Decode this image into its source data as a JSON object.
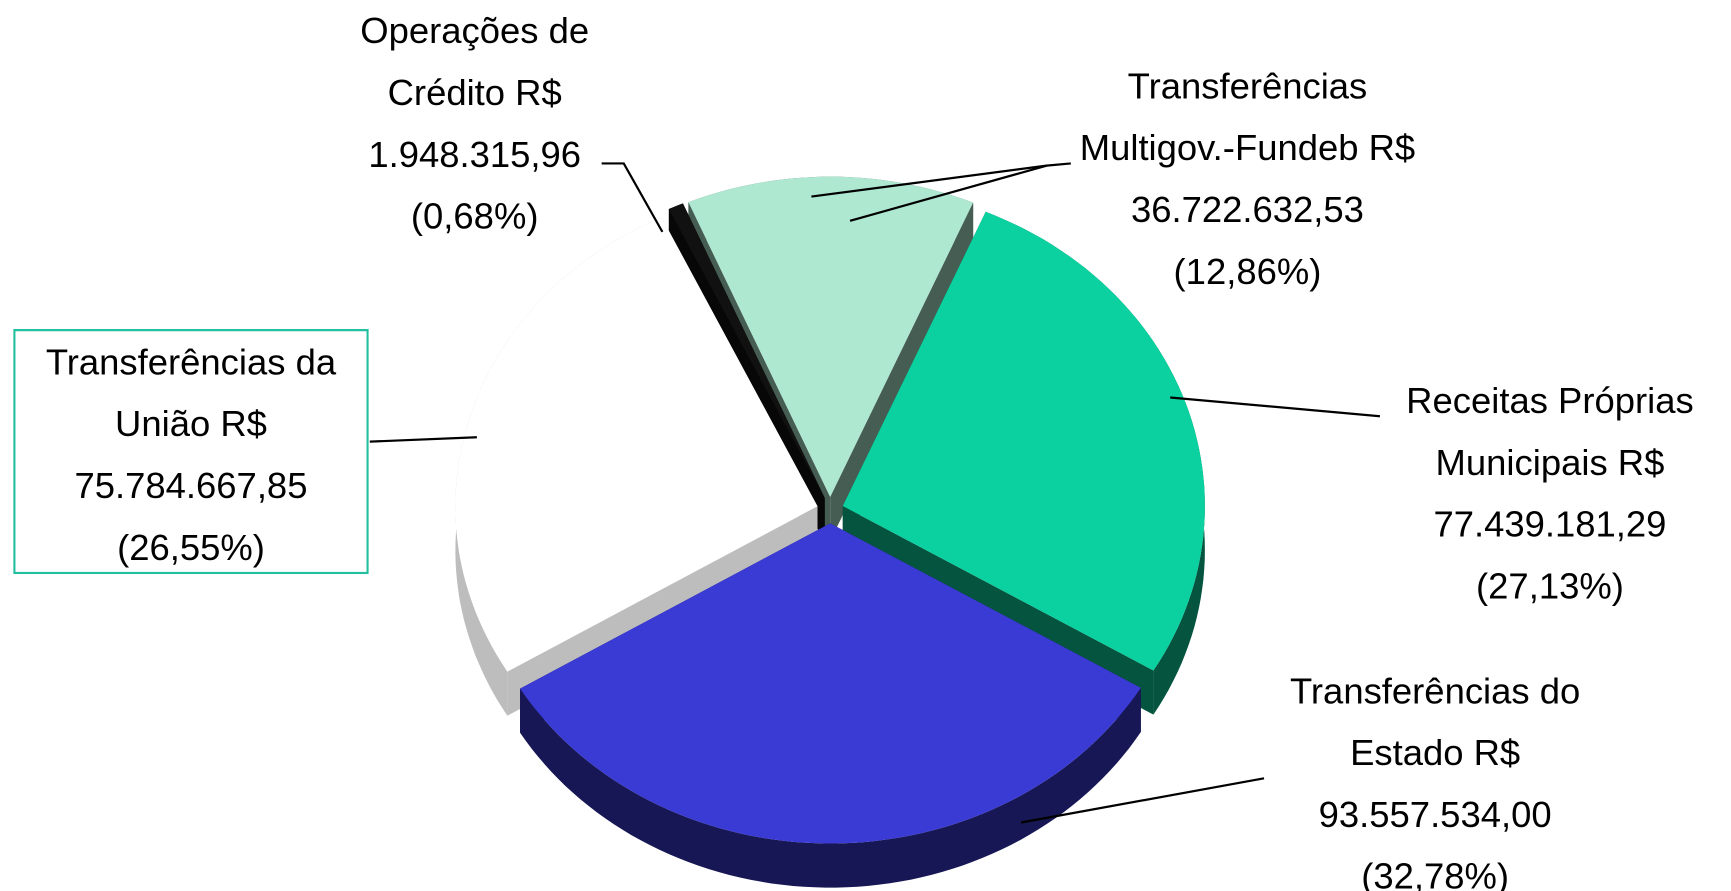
{
  "chart_data": {
    "type": "pie",
    "categories": [
      "Operações de Crédito R$ 1.948.315,96",
      "Transferências Multigov.-Fundeb R$ 36.722.632,53",
      "Receitas Próprias Municipais R$ 77.439.181,29",
      "Transferências do Estado R$ 93.557.534,00",
      "Transferências da União R$ 75.784.667,85"
    ],
    "values": [
      0.68,
      12.86,
      27.13,
      32.78,
      26.55
    ],
    "value_labels": [
      "(0,68%)",
      "(12,86%)",
      "(27,13%)",
      "(32,78%)",
      "(26,55%)"
    ],
    "colors": [
      "#111111",
      "#aee8d0",
      "#0ad19f",
      "#3a3ad4",
      "#ffffff"
    ]
  }
}
